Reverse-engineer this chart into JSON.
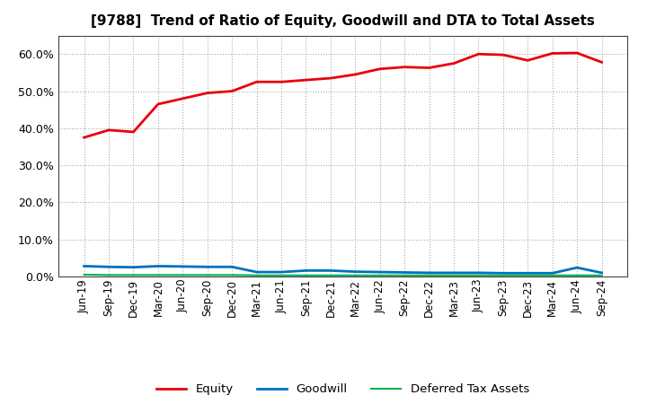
{
  "title": "[9788]  Trend of Ratio of Equity, Goodwill and DTA to Total Assets",
  "x_labels": [
    "Jun-19",
    "Sep-19",
    "Dec-19",
    "Mar-20",
    "Jun-20",
    "Sep-20",
    "Dec-20",
    "Mar-21",
    "Jun-21",
    "Sep-21",
    "Dec-21",
    "Mar-22",
    "Jun-22",
    "Sep-22",
    "Dec-22",
    "Mar-23",
    "Jun-23",
    "Sep-23",
    "Dec-23",
    "Mar-24",
    "Jun-24",
    "Sep-24"
  ],
  "equity": [
    0.375,
    0.395,
    0.39,
    0.465,
    0.48,
    0.495,
    0.5,
    0.525,
    0.525,
    0.53,
    0.535,
    0.545,
    0.56,
    0.565,
    0.563,
    0.575,
    0.6,
    0.598,
    0.583,
    0.602,
    0.603,
    0.578
  ],
  "goodwill": [
    0.028,
    0.026,
    0.025,
    0.028,
    0.027,
    0.026,
    0.026,
    0.012,
    0.012,
    0.016,
    0.016,
    0.013,
    0.012,
    0.011,
    0.01,
    0.01,
    0.01,
    0.009,
    0.009,
    0.009,
    0.024,
    0.01
  ],
  "dta": [
    0.005,
    0.004,
    0.004,
    0.004,
    0.004,
    0.004,
    0.004,
    0.003,
    0.003,
    0.003,
    0.003,
    0.003,
    0.003,
    0.003,
    0.003,
    0.003,
    0.003,
    0.003,
    0.003,
    0.003,
    0.003,
    0.003
  ],
  "equity_color": "#e8000d",
  "goodwill_color": "#0070c0",
  "dta_color": "#00b050",
  "background_color": "#ffffff",
  "grid_color": "#aaaaaa",
  "ylim": [
    0.0,
    0.65
  ],
  "yticks": [
    0.0,
    0.1,
    0.2,
    0.3,
    0.4,
    0.5,
    0.6
  ],
  "legend_labels": [
    "Equity",
    "Goodwill",
    "Deferred Tax Assets"
  ],
  "title_fontsize": 11,
  "tick_fontsize": 8.5,
  "ytick_fontsize": 9
}
